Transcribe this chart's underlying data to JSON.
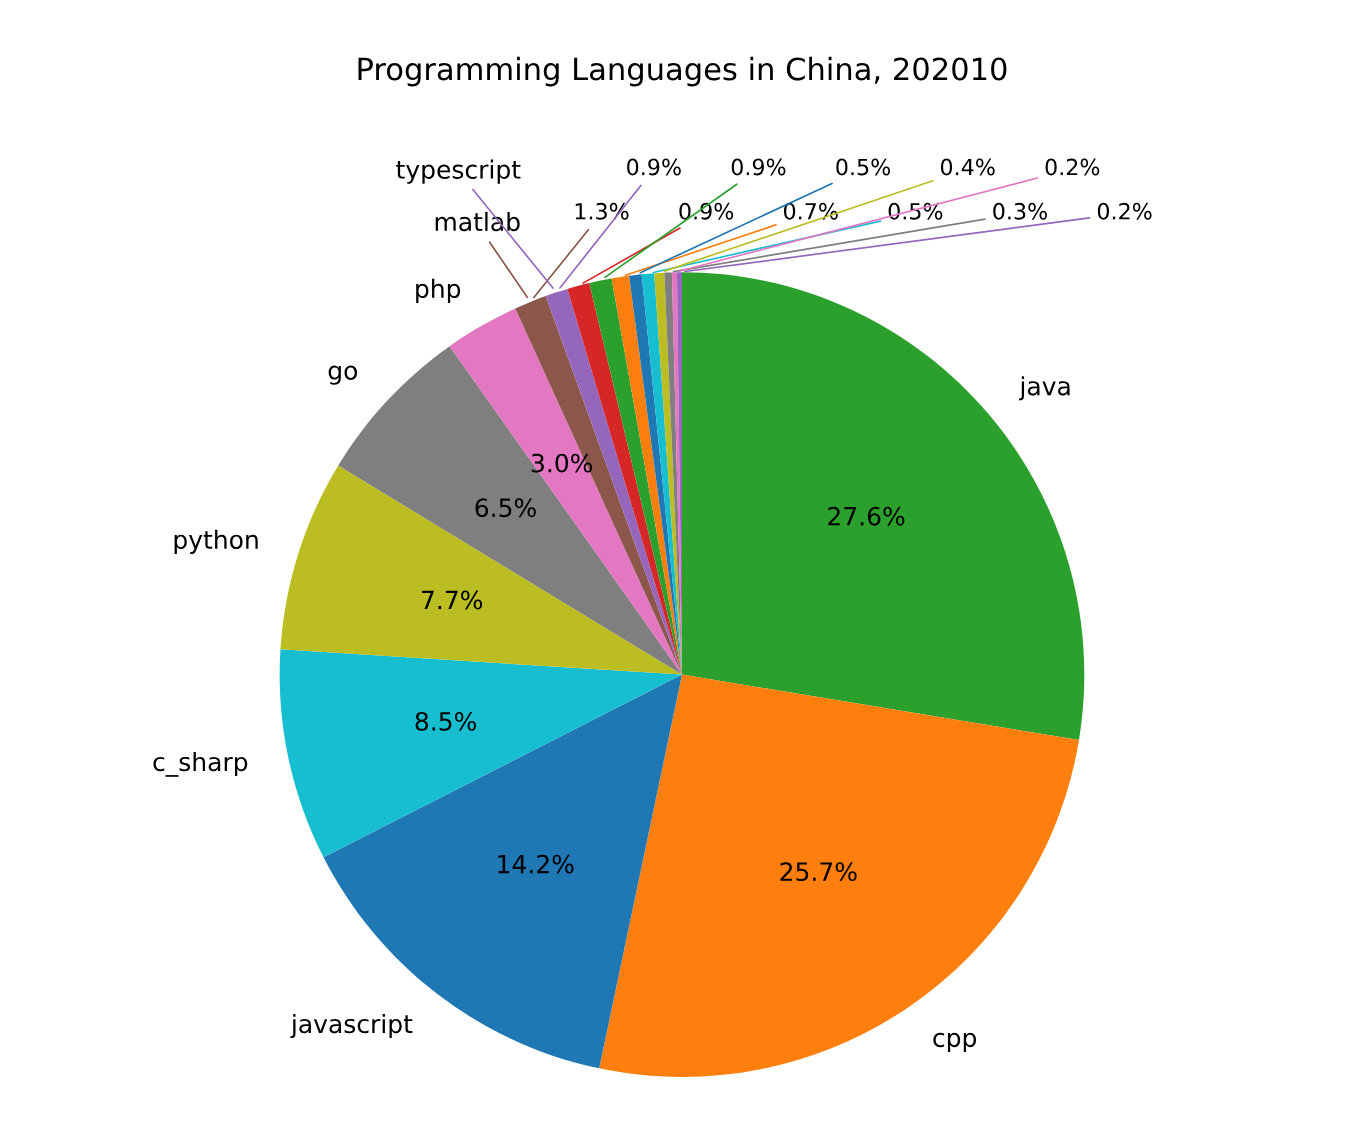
{
  "chart_data": {
    "type": "pie",
    "title": "Programming Languages in China, 202010",
    "categories": [
      "java",
      "cpp",
      "javascript",
      "c_sharp",
      "python",
      "go",
      "php",
      "matlab",
      "typescript",
      null,
      null,
      null,
      null,
      null,
      null,
      null,
      null,
      null
    ],
    "values": [
      27.6,
      25.7,
      14.2,
      8.5,
      7.7,
      6.5,
      3.0,
      1.3,
      0.9,
      0.9,
      0.9,
      0.7,
      0.5,
      0.5,
      0.4,
      0.3,
      0.2,
      0.2
    ],
    "value_labels": [
      "27.6%",
      "25.7%",
      "14.2%",
      "8.5%",
      "7.7%",
      "6.5%",
      "3.0%",
      "1.3%",
      "0.9%",
      "0.9%",
      "0.9%",
      "0.7%",
      "0.5%",
      "0.5%",
      "0.4%",
      "0.3%",
      "0.2%",
      "0.2%"
    ],
    "colors": [
      "#2ca02c",
      "#ff7f0e",
      "#1f77b4",
      "#17becf",
      "#bcbd22",
      "#7f7f7f",
      "#e377c2",
      "#8c564b",
      "#9467bd",
      "#d62728",
      "#2ca02c",
      "#ff7f0e",
      "#1f77b4",
      "#17becf",
      "#bcbd22",
      "#7f7f7f",
      "#e377c2",
      "#9467bd"
    ]
  }
}
